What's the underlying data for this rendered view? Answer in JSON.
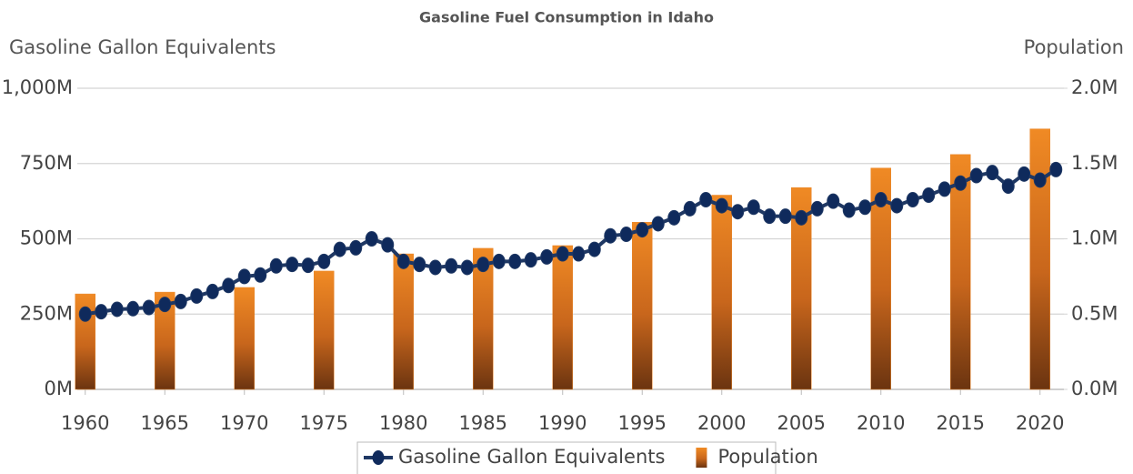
{
  "chart_data": {
    "type": "bar-line",
    "title": "Gasoline Fuel Consumption in Idaho",
    "y_label": "Gasoline Gallon Equivalents",
    "y2_label": "Population",
    "x": [
      1960,
      1961,
      1962,
      1963,
      1964,
      1965,
      1966,
      1967,
      1968,
      1969,
      1970,
      1971,
      1972,
      1973,
      1974,
      1975,
      1976,
      1977,
      1978,
      1979,
      1980,
      1981,
      1982,
      1983,
      1984,
      1985,
      1986,
      1987,
      1988,
      1989,
      1990,
      1991,
      1992,
      1993,
      1994,
      1995,
      1996,
      1997,
      1998,
      1999,
      2000,
      2001,
      2002,
      2003,
      2004,
      2005,
      2006,
      2007,
      2008,
      2009,
      2010,
      2011,
      2012,
      2013,
      2014,
      2015,
      2016,
      2017,
      2018,
      2019,
      2020,
      2021
    ],
    "xlim": [
      1959.5,
      2021.5
    ],
    "xticks": [
      1960,
      1965,
      1970,
      1975,
      1980,
      1985,
      1990,
      1995,
      2000,
      2005,
      2010,
      2015,
      2020
    ],
    "ylim": [
      0,
      1000
    ],
    "yticks": [
      {
        "value": 0,
        "label": "0M"
      },
      {
        "value": 250,
        "label": "250M"
      },
      {
        "value": 500,
        "label": "500M"
      },
      {
        "value": 750,
        "label": "750M"
      },
      {
        "value": 1000,
        "label": "1,000M"
      }
    ],
    "y2lim": [
      0,
      2
    ],
    "y2ticks": [
      {
        "value": 0,
        "label": "0.0M"
      },
      {
        "value": 0.5,
        "label": "0.5M"
      },
      {
        "value": 1,
        "label": "1.0M"
      },
      {
        "value": 1.5,
        "label": "1.5M"
      },
      {
        "value": 2,
        "label": "2.0M"
      }
    ],
    "grid": true,
    "legend": "bottom",
    "series": [
      {
        "name": "Gasoline Gallon Equivalents",
        "type": "line",
        "color": "#1f3864",
        "values": [
          250,
          258,
          266,
          268,
          272,
          282,
          292,
          310,
          325,
          345,
          375,
          380,
          410,
          415,
          412,
          425,
          465,
          470,
          500,
          480,
          425,
          415,
          405,
          410,
          405,
          415,
          425,
          425,
          430,
          440,
          450,
          450,
          465,
          510,
          515,
          530,
          550,
          570,
          600,
          630,
          610,
          590,
          605,
          575,
          575,
          570,
          600,
          625,
          595,
          605,
          630,
          610,
          630,
          645,
          665,
          685,
          710,
          720,
          675,
          715,
          695,
          730
        ]
      },
      {
        "name": "Population",
        "type": "bar",
        "axis": "y2",
        "color": "#e8862a",
        "values": [
          0.634,
          null,
          null,
          null,
          null,
          0.646,
          null,
          null,
          null,
          null,
          0.677,
          null,
          null,
          null,
          null,
          0.786,
          null,
          null,
          null,
          null,
          0.9,
          null,
          null,
          null,
          null,
          0.937,
          null,
          null,
          null,
          null,
          0.955,
          null,
          null,
          null,
          null,
          1.11,
          null,
          null,
          null,
          null,
          1.29,
          null,
          null,
          null,
          null,
          1.34,
          null,
          null,
          null,
          null,
          1.47,
          null,
          null,
          null,
          null,
          1.56,
          null,
          null,
          null,
          null,
          1.73,
          null
        ]
      }
    ]
  }
}
